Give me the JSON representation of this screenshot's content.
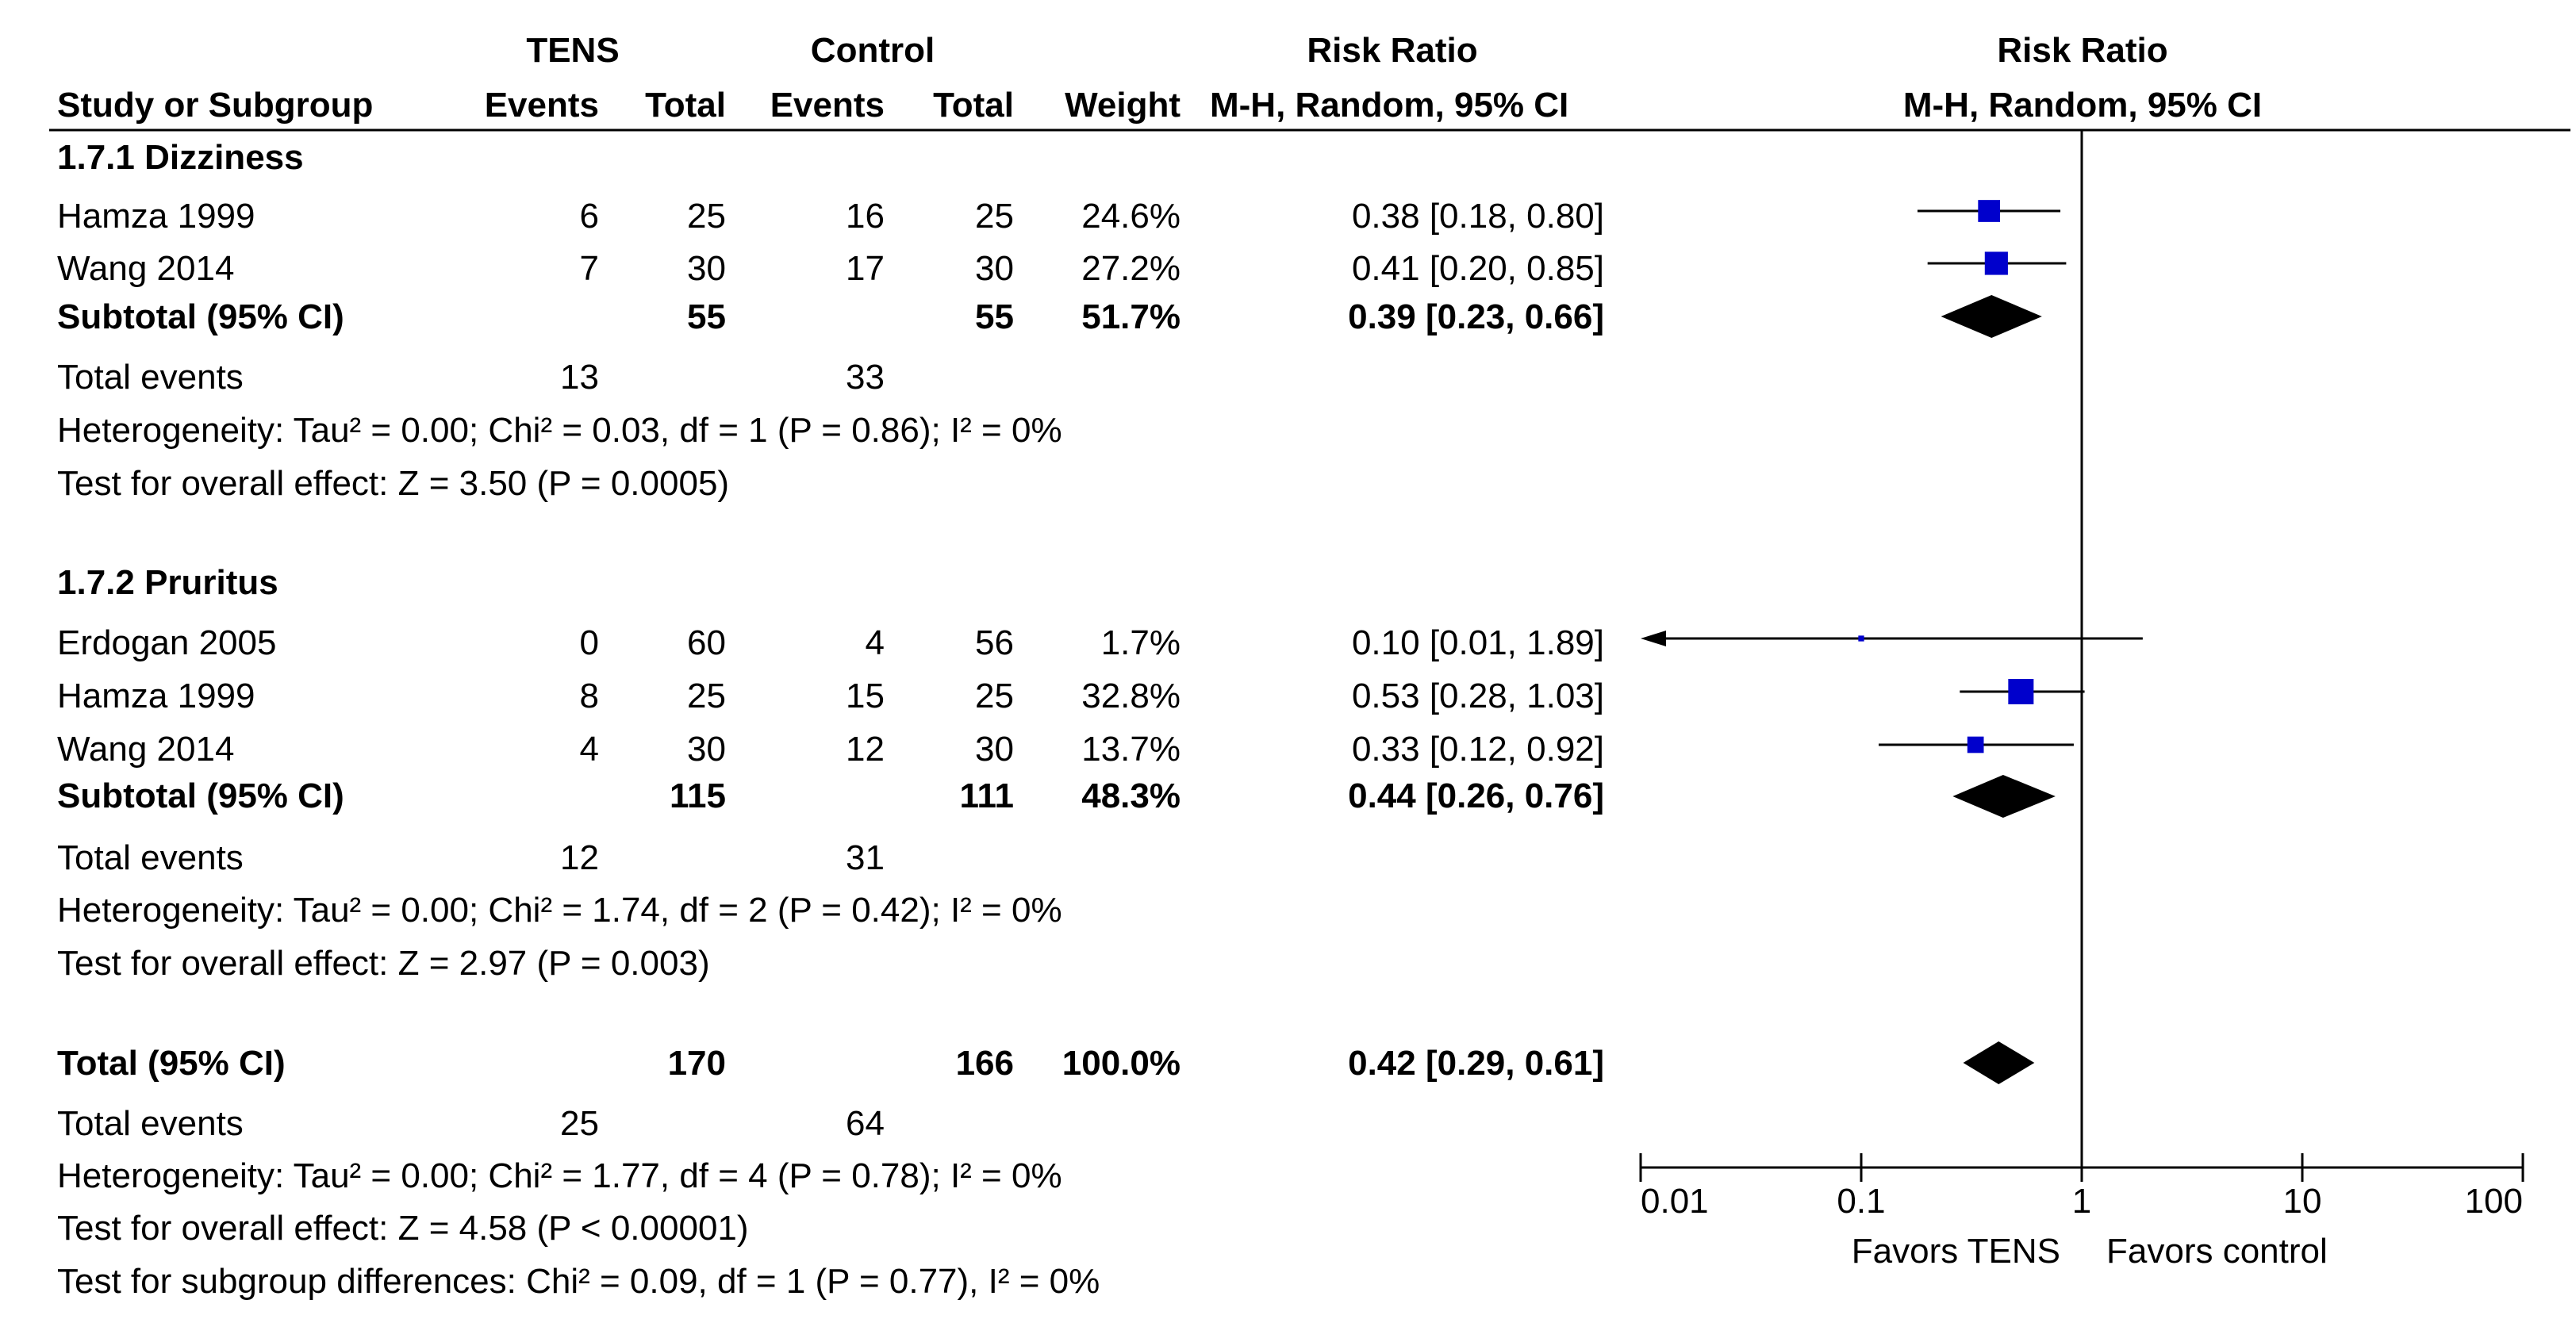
{
  "header": {
    "group1": "TENS",
    "group2": "Control",
    "rr_table": "Risk Ratio",
    "rr_plot": "Risk Ratio",
    "col_study": "Study or Subgroup",
    "col_events1": "Events",
    "col_total1": "Total",
    "col_events2": "Events",
    "col_total2": "Total",
    "col_weight": "Weight",
    "col_method_table": "M-H, Random, 95% CI",
    "col_method_plot": "M-H, Random, 95% CI"
  },
  "subgroups": [
    {
      "title": "1.7.1 Dizziness",
      "studies": [
        {
          "name": "Hamza 1999",
          "e1": "6",
          "t1": "25",
          "e2": "16",
          "t2": "25",
          "weight": "24.6%",
          "rr_text": "0.38 [0.18, 0.80]",
          "rr": 0.38,
          "lo": 0.18,
          "hi": 0.8,
          "w": 24.6
        },
        {
          "name": "Wang 2014",
          "e1": "7",
          "t1": "30",
          "e2": "17",
          "t2": "30",
          "weight": "27.2%",
          "rr_text": "0.41 [0.20, 0.85]",
          "rr": 0.41,
          "lo": 0.2,
          "hi": 0.85,
          "w": 27.2
        }
      ],
      "subtotal": {
        "label": "Subtotal (95% CI)",
        "t1": "55",
        "t2": "55",
        "weight": "51.7%",
        "rr_text": "0.39 [0.23, 0.66]",
        "rr": 0.39,
        "lo": 0.23,
        "hi": 0.66
      },
      "total_events": {
        "label": "Total events",
        "e1": "13",
        "e2": "33"
      },
      "heterogeneity": "Heterogeneity: Tau² = 0.00; Chi² = 0.03, df = 1 (P = 0.86); I² = 0%",
      "overall": "Test for overall effect: Z = 3.50 (P = 0.0005)"
    },
    {
      "title": "1.7.2 Pruritus",
      "studies": [
        {
          "name": "Erdogan 2005",
          "e1": "0",
          "t1": "60",
          "e2": "4",
          "t2": "56",
          "weight": "1.7%",
          "rr_text": "0.10 [0.01, 1.89]",
          "rr": 0.1,
          "lo": 0.01,
          "hi": 1.89,
          "w": 1.7
        },
        {
          "name": "Hamza 1999",
          "e1": "8",
          "t1": "25",
          "e2": "15",
          "t2": "25",
          "weight": "32.8%",
          "rr_text": "0.53 [0.28, 1.03]",
          "rr": 0.53,
          "lo": 0.28,
          "hi": 1.03,
          "w": 32.8
        },
        {
          "name": "Wang 2014",
          "e1": "4",
          "t1": "30",
          "e2": "12",
          "t2": "30",
          "weight": "13.7%",
          "rr_text": "0.33 [0.12, 0.92]",
          "rr": 0.33,
          "lo": 0.12,
          "hi": 0.92,
          "w": 13.7
        }
      ],
      "subtotal": {
        "label": "Subtotal (95% CI)",
        "t1": "115",
        "t2": "111",
        "weight": "48.3%",
        "rr_text": "0.44 [0.26, 0.76]",
        "rr": 0.44,
        "lo": 0.26,
        "hi": 0.76
      },
      "total_events": {
        "label": "Total events",
        "e1": "12",
        "e2": "31"
      },
      "heterogeneity": "Heterogeneity: Tau² = 0.00; Chi² = 1.74, df = 2 (P = 0.42); I² = 0%",
      "overall": "Test for overall effect: Z = 2.97 (P = 0.003)"
    }
  ],
  "total": {
    "label": "Total (95% CI)",
    "t1": "170",
    "t2": "166",
    "weight": "100.0%",
    "rr_text": "0.42 [0.29, 0.61]",
    "rr": 0.42,
    "lo": 0.29,
    "hi": 0.61,
    "total_events": {
      "label": "Total events",
      "e1": "25",
      "e2": "64"
    },
    "heterogeneity": "Heterogeneity: Tau² = 0.00; Chi² = 1.77, df = 4 (P = 0.78); I² = 0%",
    "overall": "Test for overall effect: Z = 4.58 (P < 0.00001)",
    "subgroup_diff": "Test for subgroup differences: Chi² = 0.09, df = 1 (P = 0.77), I² = 0%"
  },
  "axis": {
    "ticks": [
      0.01,
      0.1,
      1,
      10,
      100
    ],
    "tick_labels": [
      "0.01",
      "0.1",
      "1",
      "10",
      "100"
    ],
    "favors_left": "Favors TENS",
    "favors_right": "Favors control"
  },
  "colors": {
    "square": "#0000cc",
    "diamond": "#000000",
    "line": "#000000"
  },
  "chart_data": {
    "type": "forest",
    "scale": "log",
    "xlim": [
      0.01,
      100
    ],
    "reference_line": 1,
    "series": [
      {
        "name": "Hamza 1999",
        "subgroup": "1.7.1 Dizziness",
        "rr": 0.38,
        "ci": [
          0.18,
          0.8
        ],
        "weight": 24.6
      },
      {
        "name": "Wang 2014",
        "subgroup": "1.7.1 Dizziness",
        "rr": 0.41,
        "ci": [
          0.2,
          0.85
        ],
        "weight": 27.2
      },
      {
        "name": "Subtotal (95% CI)",
        "subgroup": "1.7.1 Dizziness",
        "rr": 0.39,
        "ci": [
          0.23,
          0.66
        ],
        "weight": 51.7
      },
      {
        "name": "Erdogan 2005",
        "subgroup": "1.7.2 Pruritus",
        "rr": 0.1,
        "ci": [
          0.01,
          1.89
        ],
        "weight": 1.7
      },
      {
        "name": "Hamza 1999",
        "subgroup": "1.7.2 Pruritus",
        "rr": 0.53,
        "ci": [
          0.28,
          1.03
        ],
        "weight": 32.8
      },
      {
        "name": "Wang 2014",
        "subgroup": "1.7.2 Pruritus",
        "rr": 0.33,
        "ci": [
          0.12,
          0.92
        ],
        "weight": 13.7
      },
      {
        "name": "Subtotal (95% CI)",
        "subgroup": "1.7.2 Pruritus",
        "rr": 0.44,
        "ci": [
          0.26,
          0.76
        ],
        "weight": 48.3
      },
      {
        "name": "Total (95% CI)",
        "subgroup": "",
        "rr": 0.42,
        "ci": [
          0.29,
          0.61
        ],
        "weight": 100.0
      }
    ]
  }
}
